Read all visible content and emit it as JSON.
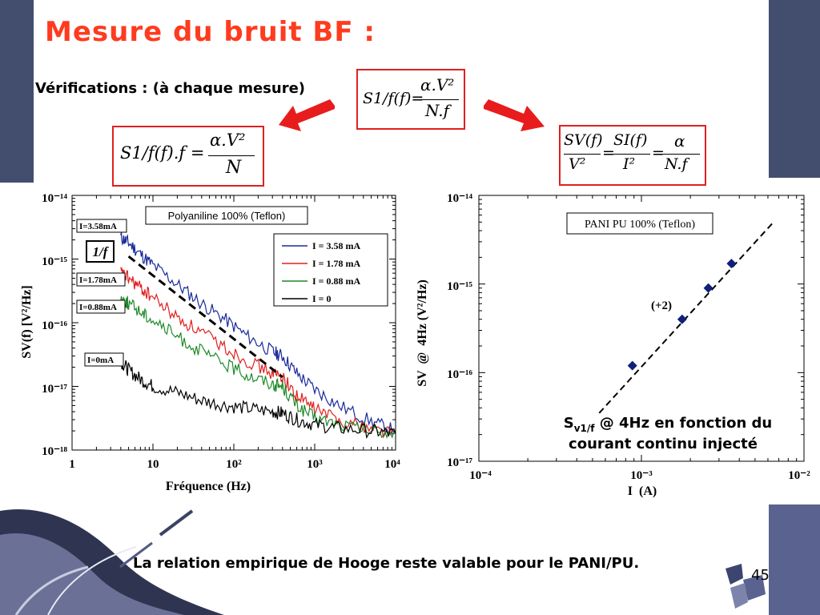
{
  "slide": {
    "title": "Mesure du bruit BF :",
    "subtitle": "Vérifications : (à chaque mesure)",
    "footer": "La relation empirique de Hooge reste valable pour le PANI/PU.",
    "page_number": "45",
    "colors": {
      "title": "#ff3b1f",
      "band": "#434d6e",
      "arrow": "#e81c1c",
      "formula_border": "#e02020"
    }
  },
  "formulas": {
    "center": {
      "lhs": "S1/f(f)=",
      "num": "α.V²",
      "den": "N.f"
    },
    "left": {
      "lhs": "S1/f(f).f =",
      "num": "α.V²",
      "den": "N"
    },
    "right": {
      "t1num": "SV(f)",
      "t1den": "V²",
      "eq1": "=",
      "t2num": "SI(f)",
      "t2den": "I²",
      "eq2": "=",
      "t3num": "α",
      "t3den": "N.f"
    }
  },
  "chart_data": [
    {
      "type": "line",
      "title": "Polyaniline 100% (Teflon)",
      "xlabel": "Fréquence (Hz)",
      "ylabel": "SV(f) [V²/Hz]",
      "x_scale": "log",
      "y_scale": "log",
      "xlim": [
        1,
        10000
      ],
      "ylim": [
        1e-18,
        1e-14
      ],
      "x_ticks": [
        "1",
        "10",
        "10²",
        "10³",
        "10⁴"
      ],
      "y_ticks": [
        "10⁻¹⁴",
        "10⁻¹⁵",
        "10⁻¹⁶",
        "10⁻¹⁷",
        "10⁻¹⁸"
      ],
      "legend_position": "top-right",
      "series": [
        {
          "name": "I = 3.58 mA",
          "color": "#1a2a9a",
          "points": [
            [
              4,
              2.2e-15
            ],
            [
              5,
              1.8e-15
            ],
            [
              7,
              1.2e-15
            ],
            [
              10,
              8e-16
            ],
            [
              20,
              4e-16
            ],
            [
              40,
              2e-16
            ],
            [
              80,
              1.1e-16
            ],
            [
              150,
              6e-17
            ],
            [
              300,
              3.5e-17
            ],
            [
              400,
              3e-17
            ],
            [
              600,
              1.6e-17
            ],
            [
              1000,
              9e-18
            ],
            [
              2000,
              5e-18
            ],
            [
              5000,
              2.8e-18
            ],
            [
              10000,
              2e-18
            ]
          ]
        },
        {
          "name": "I = 1.78 mA",
          "color": "#e02020",
          "points": [
            [
              4,
              6e-16
            ],
            [
              5,
              5e-16
            ],
            [
              7,
              3.5e-16
            ],
            [
              10,
              2.5e-16
            ],
            [
              20,
              1.2e-16
            ],
            [
              40,
              7e-17
            ],
            [
              80,
              4e-17
            ],
            [
              150,
              2.5e-17
            ],
            [
              300,
              1.6e-17
            ],
            [
              400,
              1.4e-17
            ],
            [
              600,
              7e-18
            ],
            [
              1000,
              4.5e-18
            ],
            [
              2000,
              3e-18
            ],
            [
              5000,
              2.2e-18
            ],
            [
              10000,
              1.9e-18
            ]
          ]
        },
        {
          "name": "I = 0.88 mA",
          "color": "#1e8a28",
          "points": [
            [
              4,
              2.5e-16
            ],
            [
              5,
              2e-16
            ],
            [
              7,
              1.5e-16
            ],
            [
              10,
              1.1e-16
            ],
            [
              20,
              6e-17
            ],
            [
              40,
              3.5e-17
            ],
            [
              80,
              2.2e-17
            ],
            [
              150,
              1.5e-17
            ],
            [
              300,
              1.1e-17
            ],
            [
              400,
              1e-17
            ],
            [
              600,
              5e-18
            ],
            [
              1000,
              3.2e-18
            ],
            [
              2000,
              2.5e-18
            ],
            [
              5000,
              2e-18
            ],
            [
              10000,
              1.8e-18
            ]
          ]
        },
        {
          "name": "I = 0",
          "color": "#000000",
          "points": [
            [
              4,
              2.5e-17
            ],
            [
              5,
              1.8e-17
            ],
            [
              7,
              1.3e-17
            ],
            [
              10,
              1e-17
            ],
            [
              20,
              8e-18
            ],
            [
              40,
              6e-18
            ],
            [
              80,
              5e-18
            ],
            [
              150,
              4.5e-18
            ],
            [
              300,
              4e-18
            ],
            [
              400,
              3.8e-18
            ],
            [
              600,
              3e-18
            ],
            [
              1000,
              2.5e-18
            ],
            [
              2000,
              2.2e-18
            ],
            [
              5000,
              2e-18
            ],
            [
              10000,
              1.8e-18
            ]
          ]
        }
      ],
      "guide_line": {
        "label": "1/f",
        "from": [
          5,
          1.1e-15
        ],
        "to": [
          400,
          1.4e-17
        ]
      },
      "annotations": [
        "I=3.58mA",
        "I=1.78mA",
        "I=0.88mA",
        "I=0mA"
      ]
    },
    {
      "type": "scatter",
      "title": "PANI PU 100% (Teflon)",
      "xlabel": "I  (A)",
      "ylabel": "SV  @  4Hz (V²/Hz)",
      "x_scale": "log",
      "y_scale": "log",
      "xlim": [
        0.0001,
        0.01
      ],
      "ylim": [
        1e-17,
        1e-14
      ],
      "x_ticks": [
        "10⁻⁴",
        "10⁻³",
        "10⁻²"
      ],
      "y_ticks": [
        "10⁻¹⁴",
        "10⁻¹⁵",
        "10⁻¹⁶",
        "10⁻¹⁷"
      ],
      "points": [
        [
          0.00088,
          1.2e-16
        ],
        [
          0.00178,
          4e-16
        ],
        [
          0.00258,
          9e-16
        ],
        [
          0.00358,
          1.7e-15
        ]
      ],
      "fit_line": {
        "label": "(+2)",
        "from": [
          0.00055,
          3.5e-17
        ],
        "to": [
          0.0065,
          5e-15
        ]
      },
      "caption_main": "S",
      "caption_sub": "v1/f",
      "caption_rest": " @ 4Hz en fonction du",
      "caption_line2": "courant continu injecté"
    }
  ]
}
